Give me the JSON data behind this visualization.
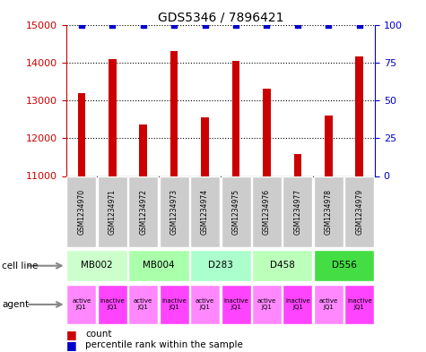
{
  "title": "GDS5346 / 7896421",
  "samples": [
    "GSM1234970",
    "GSM1234971",
    "GSM1234972",
    "GSM1234973",
    "GSM1234974",
    "GSM1234975",
    "GSM1234976",
    "GSM1234977",
    "GSM1234978",
    "GSM1234979"
  ],
  "counts": [
    13200,
    14100,
    12350,
    14300,
    12550,
    14050,
    13300,
    11580,
    12600,
    14150
  ],
  "percentiles": [
    100,
    100,
    100,
    100,
    100,
    100,
    100,
    100,
    100,
    100
  ],
  "ylim_left": [
    11000,
    15000
  ],
  "ylim_right": [
    0,
    100
  ],
  "yticks_left": [
    11000,
    12000,
    13000,
    14000,
    15000
  ],
  "yticks_right": [
    0,
    25,
    50,
    75,
    100
  ],
  "cell_lines": [
    {
      "label": "MB002",
      "cols": [
        0,
        1
      ],
      "color": "#ccffcc"
    },
    {
      "label": "MB004",
      "cols": [
        2,
        3
      ],
      "color": "#aaffaa"
    },
    {
      "label": "D283",
      "cols": [
        4,
        5
      ],
      "color": "#aaffcc"
    },
    {
      "label": "D458",
      "cols": [
        6,
        7
      ],
      "color": "#bbffbb"
    },
    {
      "label": "D556",
      "cols": [
        8,
        9
      ],
      "color": "#44dd44"
    }
  ],
  "agents": [
    "active\nJQ1",
    "inactive\nJQ1",
    "active\nJQ1",
    "inactive\nJQ1",
    "active\nJQ1",
    "inactive\nJQ1",
    "active\nJQ1",
    "inactive\nJQ1",
    "active\nJQ1",
    "inactive\nJQ1"
  ],
  "agent_active_color": "#ff88ff",
  "agent_inactive_color": "#ff44ff",
  "bar_color": "#cc0000",
  "dot_color": "#0000cc",
  "grid_color": "#000000",
  "left_axis_color": "#cc0000",
  "right_axis_color": "#0000cc",
  "sample_box_color": "#cccccc",
  "bar_width": 0.25,
  "fig_width": 4.75,
  "fig_height": 3.93,
  "dpi": 100
}
